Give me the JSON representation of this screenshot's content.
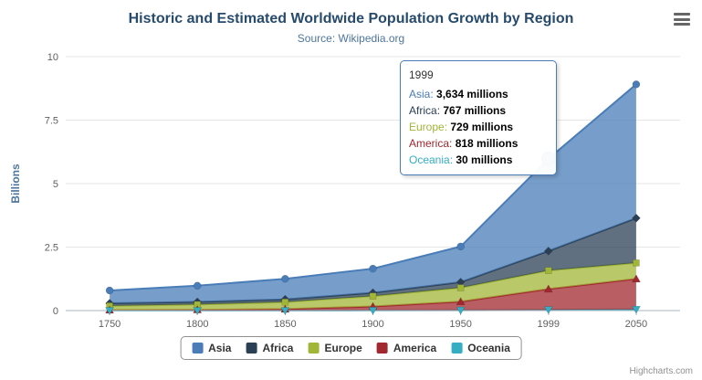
{
  "title": "Historic and Estimated Worldwide Population Growth by Region",
  "subtitle": "Source: Wikipedia.org",
  "credits": "Highcharts.com",
  "chart_data": {
    "type": "area",
    "stacked": true,
    "categories": [
      "1750",
      "1800",
      "1850",
      "1900",
      "1950",
      "1999",
      "2050"
    ],
    "unit": "millions",
    "ylabel": "Billions",
    "ylim": [
      0,
      10
    ],
    "yticks": [
      0,
      2.5,
      5,
      7.5,
      10
    ],
    "grid": true,
    "legend_position": "bottom",
    "series": [
      {
        "name": "Asia",
        "color": "#4a7db8",
        "marker": "circle",
        "values": [
          502,
          635,
          809,
          947,
          1402,
          3634,
          5268
        ]
      },
      {
        "name": "Africa",
        "color": "#2b4055",
        "marker": "diamond",
        "values": [
          106,
          107,
          111,
          133,
          221,
          767,
          1766
        ]
      },
      {
        "name": "Europe",
        "color": "#a1b637",
        "marker": "square",
        "values": [
          163,
          203,
          276,
          408,
          547,
          729,
          628
        ]
      },
      {
        "name": "America",
        "color": "#a1282f",
        "marker": "triangle",
        "values": [
          18,
          31,
          54,
          156,
          339,
          818,
          1201
        ]
      },
      {
        "name": "Oceania",
        "color": "#35aec4",
        "marker": "triangle-down",
        "values": [
          2,
          2,
          2,
          6,
          13,
          30,
          46
        ]
      }
    ]
  },
  "tooltip": {
    "header": "1999",
    "highlight": {
      "category": "1999",
      "series": "Asia"
    },
    "rows": [
      {
        "name": "Asia",
        "value": "3,634 millions"
      },
      {
        "name": "Africa",
        "value": "767 millions"
      },
      {
        "name": "Europe",
        "value": "729 millions"
      },
      {
        "name": "America",
        "value": "818 millions"
      },
      {
        "name": "Oceania",
        "value": "30 millions"
      }
    ]
  }
}
